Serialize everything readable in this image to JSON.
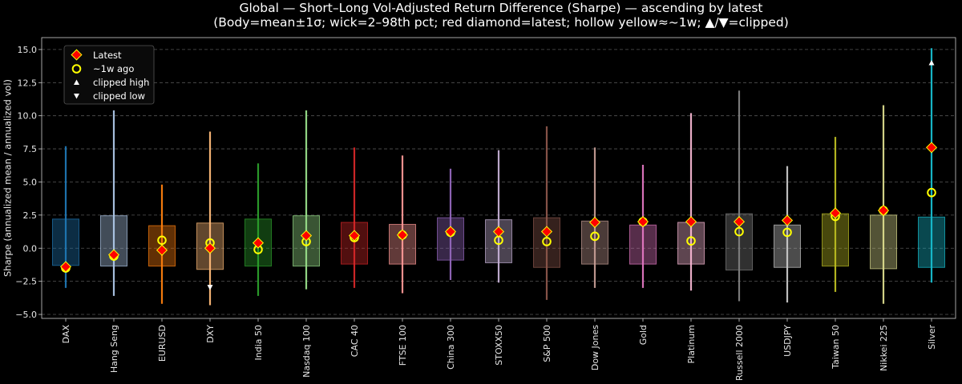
{
  "chart_data": {
    "type": "box",
    "title_line1": "Global — Short–Long Vol-Adjusted Return Difference (Sharpe) — ascending by latest",
    "title_line2": "(Body=mean±1σ; wick=2–98th pct; red diamond=latest; hollow yellow≈~1w; ▲/▼=clipped)",
    "ylabel": "Sharpe (annualized mean / annualized vol)",
    "ylim": [
      -5.3,
      15.9
    ],
    "yticks": [
      -5.0,
      -2.5,
      0.0,
      2.5,
      5.0,
      7.5,
      10.0,
      12.5,
      15.0
    ],
    "ytick_labels": [
      "−5.0",
      "−2.5",
      "0.0",
      "2.5",
      "5.0",
      "7.5",
      "10.0",
      "12.5",
      "15.0"
    ],
    "grid": "horizontal dashed",
    "legend_position": "top-left",
    "legend": {
      "latest": "Latest",
      "week": "~1w ago",
      "clip_high": "clipped high",
      "clip_low": "clipped low"
    },
    "colors": {
      "latest": "#ff0000",
      "week": "#ffff00",
      "clip_marker": "#ffffff"
    },
    "categories": [
      {
        "name": "DAX",
        "color": "#1f77b4",
        "box_low": -1.3,
        "box_high": 2.2,
        "wick_low": -3.0,
        "wick_high": 7.7,
        "latest": -1.4,
        "week": -1.5
      },
      {
        "name": "Hang Seng",
        "color": "#aec7e8",
        "box_low": -1.35,
        "box_high": 2.45,
        "wick_low": -3.6,
        "wick_high": 10.4,
        "latest": -0.5,
        "week": -0.6
      },
      {
        "name": "EURUSD",
        "color": "#ff7f0e",
        "box_low": -1.35,
        "box_high": 1.7,
        "wick_low": -4.2,
        "wick_high": 4.8,
        "latest": -0.15,
        "week": 0.6
      },
      {
        "name": "DXY",
        "color": "#ffbb78",
        "box_low": -1.6,
        "box_high": 1.9,
        "wick_low": -4.3,
        "wick_high": 8.8,
        "latest": 0.0,
        "week": 0.4,
        "clip_low": -2.95
      },
      {
        "name": "India 50",
        "color": "#2ca02c",
        "box_low": -1.35,
        "box_high": 2.2,
        "wick_low": -3.6,
        "wick_high": 6.4,
        "latest": 0.4,
        "week": -0.1
      },
      {
        "name": "Nasdaq 100",
        "color": "#98df8a",
        "box_low": -1.35,
        "box_high": 2.45,
        "wick_low": -3.1,
        "wick_high": 10.4,
        "latest": 0.95,
        "week": 0.5
      },
      {
        "name": "CAC 40",
        "color": "#d62728",
        "box_low": -1.2,
        "box_high": 1.95,
        "wick_low": -3.0,
        "wick_high": 7.6,
        "latest": 0.95,
        "week": 0.8
      },
      {
        "name": "FTSE 100",
        "color": "#ff9896",
        "box_low": -1.2,
        "box_high": 1.8,
        "wick_low": -3.4,
        "wick_high": 7.0,
        "latest": 1.0,
        "week": 1.0
      },
      {
        "name": "China 300",
        "color": "#9467bd",
        "box_low": -0.9,
        "box_high": 2.3,
        "wick_low": -2.4,
        "wick_high": 6.0,
        "latest": 1.25,
        "week": 1.2
      },
      {
        "name": "STOXX50",
        "color": "#c5b0d5",
        "box_low": -1.1,
        "box_high": 2.15,
        "wick_low": -2.6,
        "wick_high": 7.4,
        "latest": 1.25,
        "week": 0.6
      },
      {
        "name": "S&P 500",
        "color": "#8c564b",
        "box_low": -1.45,
        "box_high": 2.3,
        "wick_low": -3.9,
        "wick_high": 9.2,
        "latest": 1.25,
        "week": 0.5
      },
      {
        "name": "Dow Jones",
        "color": "#c49c94",
        "box_low": -1.2,
        "box_high": 2.05,
        "wick_low": -3.0,
        "wick_high": 7.6,
        "latest": 1.95,
        "week": 0.9
      },
      {
        "name": "Gold",
        "color": "#e377c2",
        "box_low": -1.2,
        "box_high": 1.75,
        "wick_low": -3.0,
        "wick_high": 6.3,
        "latest": 2.0,
        "week": 2.0
      },
      {
        "name": "Platinum",
        "color": "#f7b6d2",
        "box_low": -1.2,
        "box_high": 1.95,
        "wick_low": -3.2,
        "wick_high": 10.2,
        "latest": 2.0,
        "week": 0.55
      },
      {
        "name": "Russell 2000",
        "color": "#7f7f7f",
        "box_low": -1.65,
        "box_high": 2.6,
        "wick_low": -4.0,
        "wick_high": 11.9,
        "latest": 2.0,
        "week": 1.25
      },
      {
        "name": "USDJPY",
        "color": "#c7c7c7",
        "box_low": -1.45,
        "box_high": 1.75,
        "wick_low": -4.1,
        "wick_high": 6.2,
        "latest": 2.1,
        "week": 1.2
      },
      {
        "name": "Taiwan 50",
        "color": "#bcbd22",
        "box_low": -1.35,
        "box_high": 2.6,
        "wick_low": -3.3,
        "wick_high": 8.4,
        "latest": 2.65,
        "week": 2.4
      },
      {
        "name": "Nikkei 225",
        "color": "#dbdb8d",
        "box_low": -1.55,
        "box_high": 2.5,
        "wick_low": -4.2,
        "wick_high": 10.8,
        "latest": 2.85,
        "week": 2.85
      },
      {
        "name": "Silver",
        "color": "#17becf",
        "box_low": -1.45,
        "box_high": 2.35,
        "wick_low": -2.6,
        "wick_high": 15.1,
        "latest": 7.6,
        "week": 4.2,
        "clip_high": 14.0
      }
    ]
  }
}
